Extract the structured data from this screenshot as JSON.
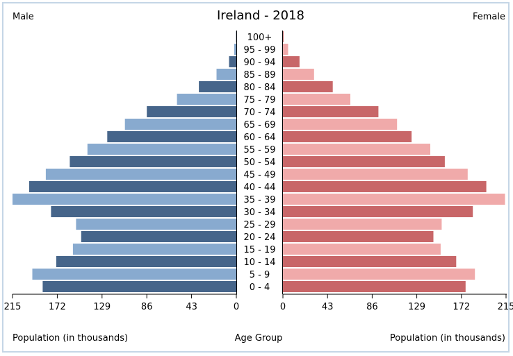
{
  "chart_data": {
    "type": "bar",
    "subtype": "population-pyramid",
    "title": "Ireland - 2018",
    "left_label": "Male",
    "right_label": "Female",
    "xlabel_left": "Population (in thousands)",
    "xlabel_center": "Age Group",
    "xlabel_right": "Population (in thousands)",
    "xlim": [
      0,
      215
    ],
    "ticks_left": [
      "215",
      "172",
      "129",
      "86",
      "43",
      "0"
    ],
    "ticks_right": [
      "0",
      "43",
      "86",
      "129",
      "172",
      "215"
    ],
    "categories": [
      "0 - 4",
      "5 - 9",
      "10 - 14",
      "15 - 19",
      "20 - 24",
      "25 - 29",
      "30 - 34",
      "35 - 39",
      "40 - 44",
      "45 - 49",
      "50 - 54",
      "55 - 59",
      "60 - 64",
      "65 - 69",
      "70 - 74",
      "75 - 79",
      "80 - 84",
      "85 - 89",
      "90 - 94",
      "95 - 99",
      "100+"
    ],
    "series": [
      {
        "name": "Male",
        "values": [
          186,
          196,
          173,
          157,
          149,
          154,
          178,
          215,
          199,
          183,
          160,
          143,
          124,
          107,
          86,
          57,
          36,
          19,
          7,
          2,
          0.3
        ]
      },
      {
        "name": "Female",
        "values": [
          176,
          185,
          167,
          152,
          145,
          153,
          183,
          214,
          196,
          178,
          156,
          142,
          124,
          110,
          92,
          65,
          48,
          30,
          16,
          5,
          0.6
        ]
      }
    ],
    "colors": {
      "male_dark": "#46658a",
      "male_light": "#88aacf",
      "female_dark": "#c86668",
      "female_light": "#f0aaaa"
    },
    "grid": false
  }
}
